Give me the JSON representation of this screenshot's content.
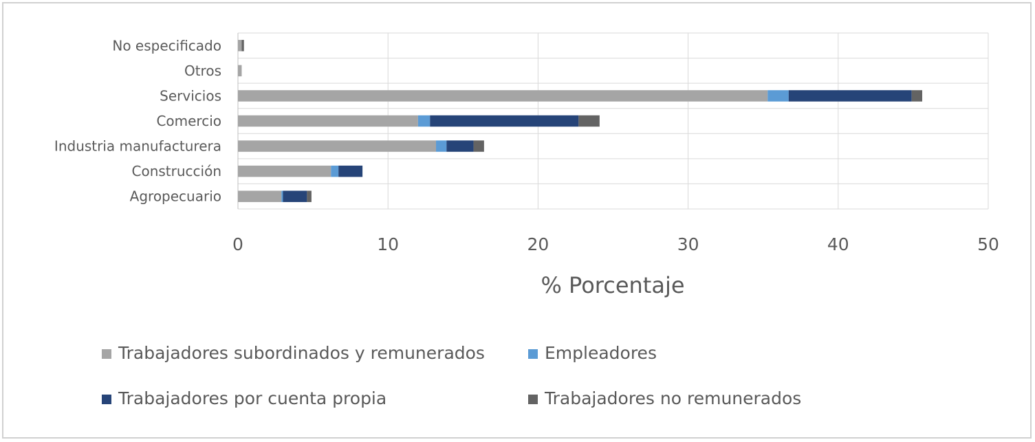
{
  "chart_data": {
    "type": "bar",
    "orientation": "horizontal",
    "stacked": true,
    "categories": [
      "Agropecuario",
      "Construcción",
      "Industria manufacturera",
      "Comercio",
      "Servicios",
      "Otros",
      "No especificado"
    ],
    "series": [
      {
        "name": "Trabajadores subordinados y remunerados",
        "color": "#a5a5a5",
        "values": [
          2.9,
          6.2,
          13.2,
          12.0,
          35.3,
          0.25,
          0.25
        ]
      },
      {
        "name": "Empleadores",
        "color": "#5b9bd5",
        "values": [
          0.1,
          0.5,
          0.7,
          0.8,
          1.4,
          0.0,
          0.0
        ]
      },
      {
        "name": "Trabajadores por cuenta propia",
        "color": "#264478",
        "values": [
          1.6,
          1.6,
          1.8,
          9.9,
          8.2,
          0.0,
          0.0
        ]
      },
      {
        "name": "Trabajadores no remunerados",
        "color": "#636363",
        "values": [
          0.3,
          0.0,
          0.7,
          1.4,
          0.7,
          0.0,
          0.15
        ]
      }
    ],
    "xlabel": "% Porcentaje",
    "xlim": [
      0,
      50
    ],
    "xticks": [
      "0",
      "10",
      "20",
      "30",
      "40",
      "50"
    ],
    "grid": true,
    "legend_position": "bottom"
  }
}
